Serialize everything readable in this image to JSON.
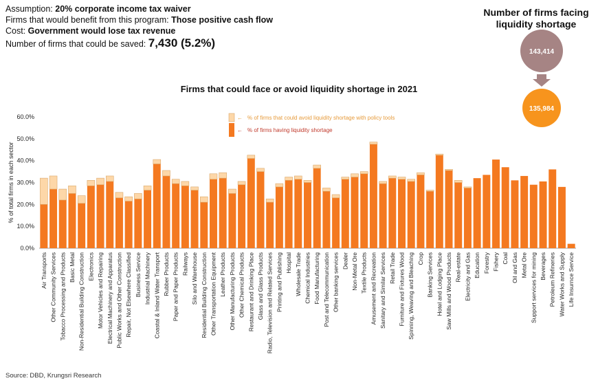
{
  "info": {
    "assumption_label": "Assumption: ",
    "assumption_value": "20% corporate income tax waiver",
    "benefit_label": "Firms that would benefit from this program: ",
    "benefit_value": "Those positive cash flow",
    "cost_label": "Cost: ",
    "cost_value": "Government would lose tax revenue",
    "saved_label": "Number of firms that could be saved: ",
    "saved_value": "7,430 (5.2%)"
  },
  "side": {
    "title": "Number of firms facing liquidity shortage",
    "before": "143,414",
    "after": "135,984",
    "before_color": "#a68484",
    "after_color": "#f7941d",
    "arrow_color": "#a68484"
  },
  "source": "Source: DBD, Krungsri Research",
  "chart_data": {
    "type": "bar",
    "stacked": true,
    "title": "Firms that could face or avoid liquidity shortage in 2021",
    "ylabel": "% of total firms in each sector",
    "xlabel": "",
    "ylim": [
      0,
      60
    ],
    "yticks": [
      "0.0%",
      "10.0%",
      "20.0%",
      "30.0%",
      "40.0%",
      "50.0%",
      "60.0%"
    ],
    "legend": [
      {
        "label": "% of firms that could avoid liquidity shortage with policy tools",
        "color": "#fdd7a8",
        "text_color": "#e69a3a"
      },
      {
        "label": "% of firms having liquidity shortage",
        "color": "#f47920",
        "text_color": "#c0392b"
      }
    ],
    "categories": [
      "Air Transports",
      "Other Community Services",
      "Tobacco Processing and Products",
      "Basic Metal",
      "Non-Residential Building Construction",
      "Electronics",
      "Motor Vehicles and Repairing",
      "Electrical Machinery and Apparatus",
      "Public Works and Other Construction",
      "Repair, Not Elsewhere Classified",
      "Business Service",
      "Industrial Machinery",
      "Coastal & Inland Water Transport",
      "Rubber Products",
      "Paper and Paper Products",
      "Railways",
      "Silo and Warehouse",
      "Residential Building Construction",
      "Other Transportation Equipment",
      "Leather Products",
      "Other Manufacturing Products",
      "Other Chemical Products",
      "Restaurant and Drinking Place",
      "Glass and Glass Products",
      "Radio, Television and Related Services",
      "Printing and Publishing",
      "Hospital",
      "Wholesale Trade",
      "Chemical Industries",
      "Food Manufacturing",
      "Post and Telecommunication",
      "Other banking services",
      "Dealer",
      "Non-Metal Ore",
      "Textile Products",
      "Amusement and Recreation",
      "Sanitary and Similar Services",
      "Retail Trade",
      "Furniture and Fixtures Wood",
      "Spinning, Weaving and Bleaching",
      "Crop",
      "Banking Services",
      "Hotel and Lodging Place",
      "Saw Mills and Wood Products",
      "Real-estate",
      "Electricity and Gas",
      "Education",
      "Forestry",
      "Fishery",
      "Coal",
      "Oil and Gas",
      "Metal Ore",
      "Support services for mining",
      "Beverages",
      "Petroleum Refineries",
      "Water Works and Supply",
      "Life Insurnce Service"
    ],
    "series": [
      {
        "name": "% of firms having liquidity shortage",
        "values": [
          20,
          27,
          22,
          25,
          20.5,
          28.5,
          29,
          30.5,
          23,
          21.5,
          22.5,
          26.5,
          38.5,
          33,
          29.5,
          28.5,
          26.5,
          21,
          31.5,
          32,
          25,
          29,
          41,
          35,
          21,
          28,
          31,
          31.5,
          30,
          36.5,
          26,
          23,
          31.5,
          32.5,
          34,
          47.5,
          29.5,
          32,
          31.5,
          30.5,
          33.5,
          26,
          42.5,
          35.5,
          30,
          27.5,
          32,
          33.5,
          40.5,
          37,
          31,
          33,
          29,
          30.5,
          36,
          28,
          2
        ]
      },
      {
        "name": "% of firms that could avoid liquidity shortage with policy tools",
        "values": [
          12,
          6,
          5,
          3.5,
          3.5,
          2.5,
          3,
          2.5,
          2.5,
          2,
          2.5,
          2,
          2,
          2.5,
          2,
          2,
          1.5,
          2.5,
          2.5,
          2.5,
          2,
          1.5,
          1.5,
          1.5,
          1.5,
          1.5,
          1.5,
          1.5,
          1,
          1.5,
          1.5,
          1.5,
          1,
          1.5,
          1,
          1,
          1,
          1,
          1,
          1,
          1,
          0.5,
          0.5,
          0.5,
          1,
          0.5,
          0,
          0,
          0,
          0,
          0,
          0,
          0,
          0,
          0,
          0,
          0
        ]
      }
    ]
  }
}
